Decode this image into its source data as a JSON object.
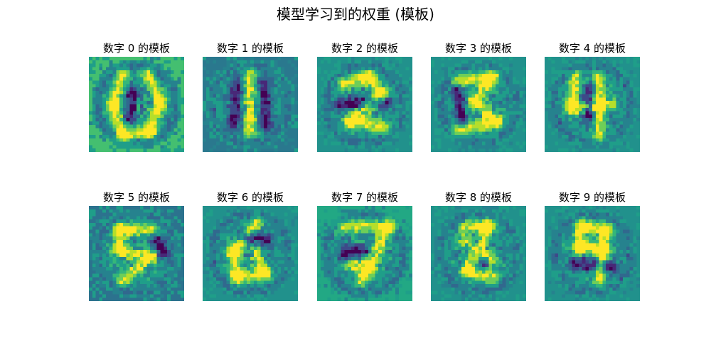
{
  "title": "模型学习到的权重 (模板)",
  "panels": [
    {
      "label": "数字 0 的模板",
      "digit": 0,
      "background": "#44bf70",
      "seed": 11
    },
    {
      "label": "数字 1 的模板",
      "digit": 1,
      "background": "#2a788e",
      "seed": 23
    },
    {
      "label": "数字 2 的模板",
      "digit": 2,
      "background": "#21918c",
      "seed": 37
    },
    {
      "label": "数字 3 的模板",
      "digit": 3,
      "background": "#21918c",
      "seed": 41
    },
    {
      "label": "数字 4 的模板",
      "digit": 4,
      "background": "#21918c",
      "seed": 53
    },
    {
      "label": "数字 5 的模板",
      "digit": 5,
      "background": "#2c728e",
      "seed": 67
    },
    {
      "label": "数字 6 的模板",
      "digit": 6,
      "background": "#21918c",
      "seed": 71
    },
    {
      "label": "数字 7 的模板",
      "digit": 7,
      "background": "#22a884",
      "seed": 83
    },
    {
      "label": "数字 8 的模板",
      "digit": 8,
      "background": "#21918c",
      "seed": 97
    },
    {
      "label": "数字 9 的模板",
      "digit": 9,
      "background": "#21918c",
      "seed": 101
    }
  ],
  "colormap": [
    "#440154",
    "#482878",
    "#3e4989",
    "#31688e",
    "#26828e",
    "#1f9e89",
    "#35b779",
    "#6ece58",
    "#b5de2b",
    "#fde725"
  ],
  "image_grid": [
    28,
    28
  ]
}
